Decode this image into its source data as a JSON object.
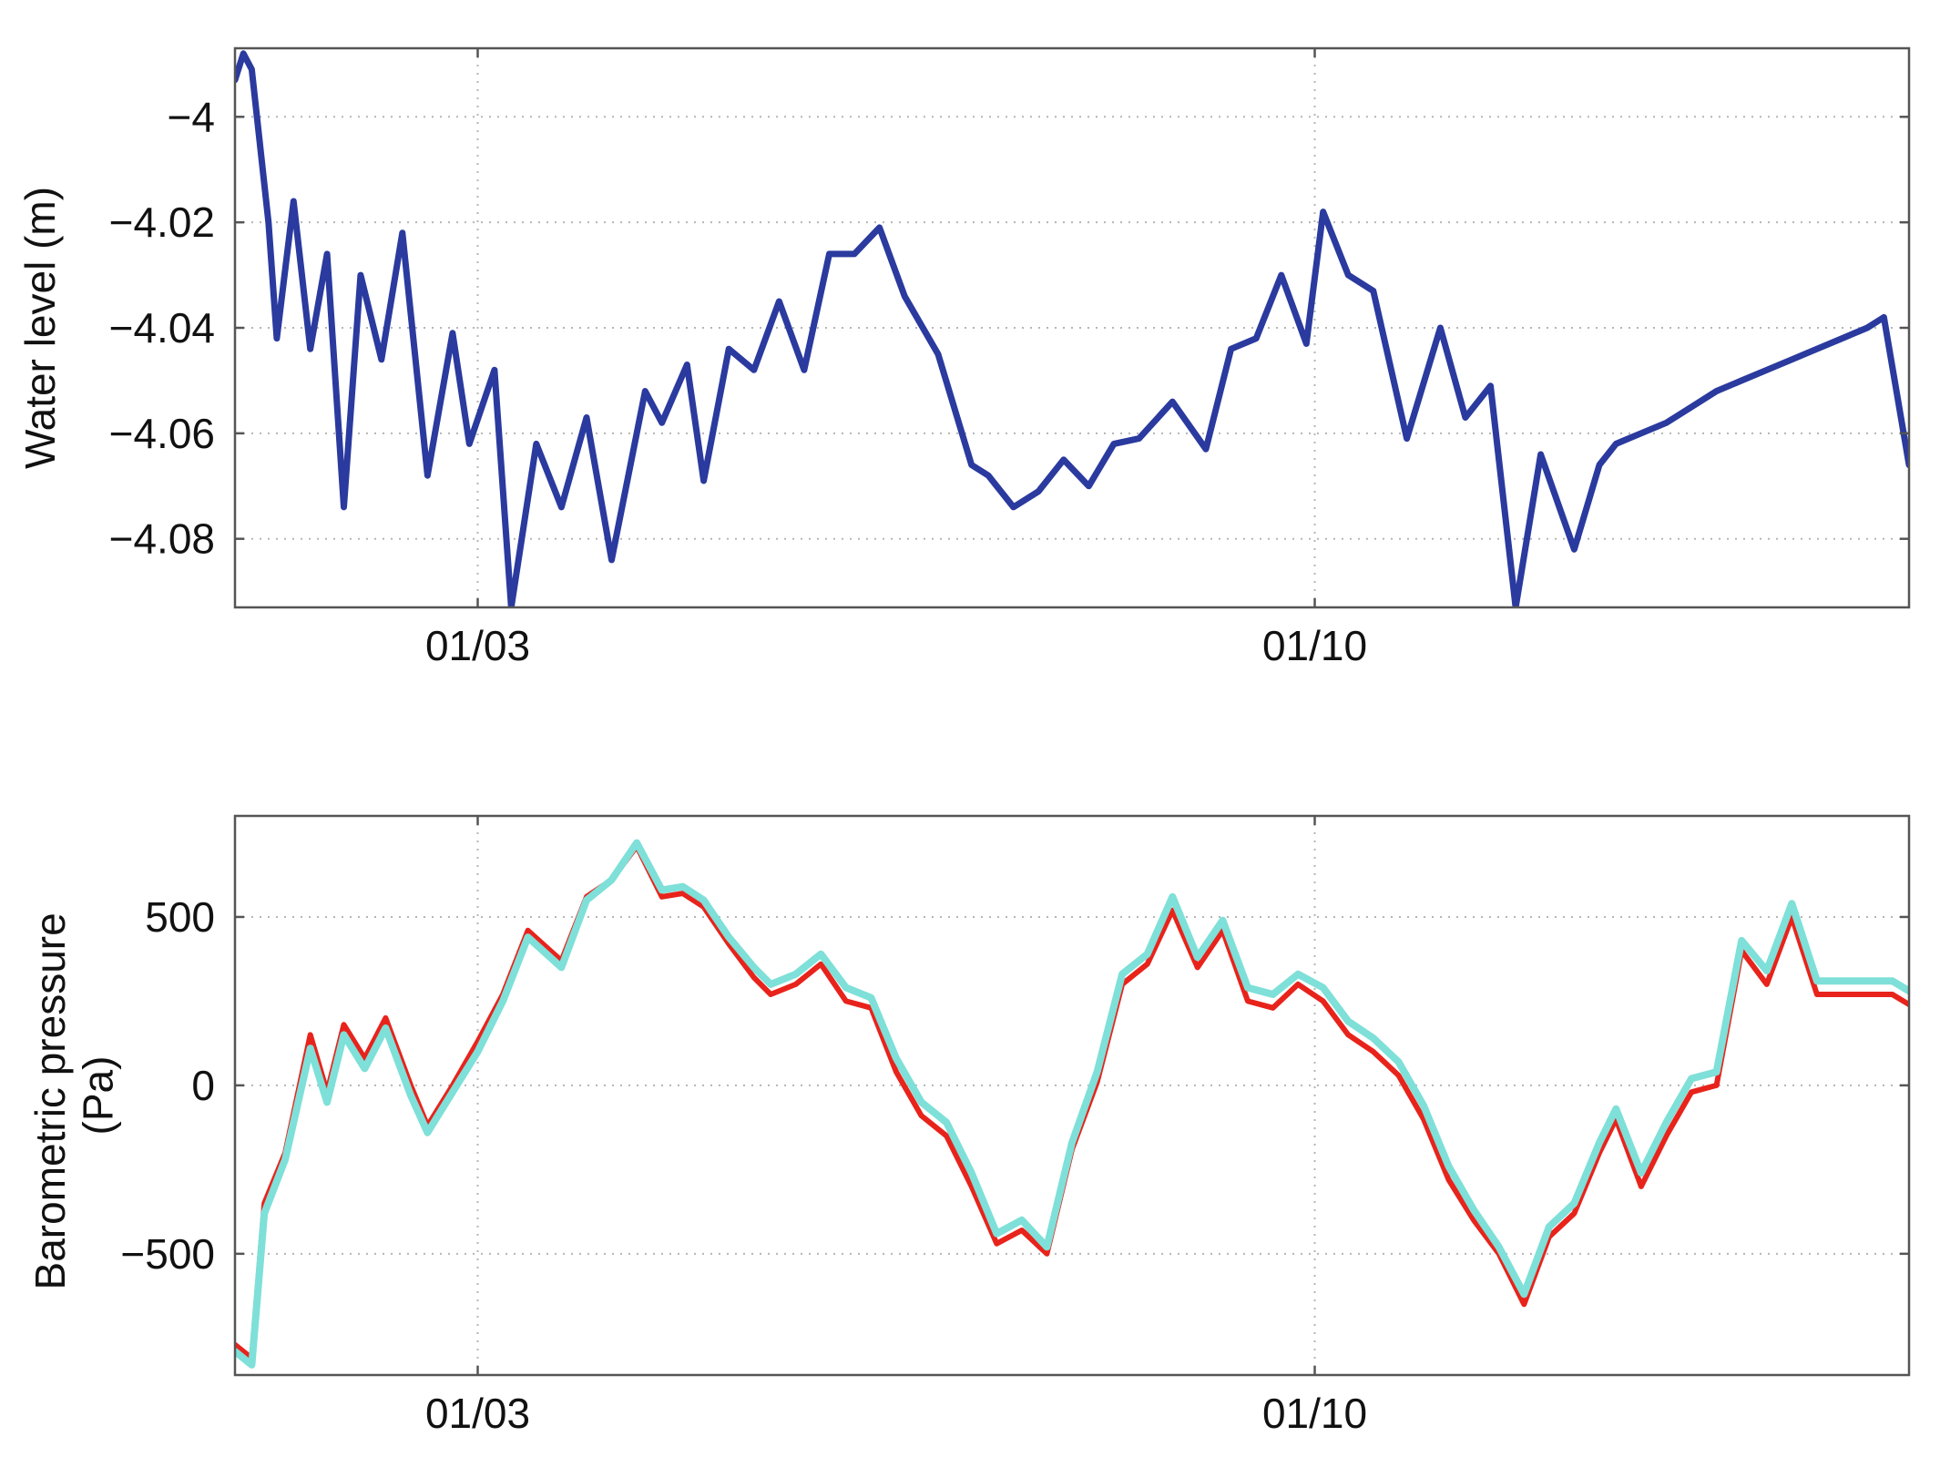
{
  "chart_data": [
    {
      "type": "line",
      "title": "",
      "xlabel": "",
      "ylabel": "Water level (m)",
      "ylim": [
        -4.093,
        -3.987
      ],
      "xlim": [
        0,
        20
      ],
      "x_ticks": [
        {
          "x": 2.9,
          "label": "01/03"
        },
        {
          "x": 12.9,
          "label": "01/10"
        }
      ],
      "y_ticks": [
        {
          "y": -4.0,
          "label": "−4"
        },
        {
          "y": -4.02,
          "label": "−4.02"
        },
        {
          "y": -4.04,
          "label": "−4.04"
        },
        {
          "y": -4.06,
          "label": "−4.06"
        },
        {
          "y": -4.08,
          "label": "−4.08"
        }
      ],
      "grid": true,
      "series": [
        {
          "color": "#2a3a9e",
          "x": [
            0,
            0.1,
            0.2,
            0.4,
            0.5,
            0.7,
            0.9,
            1.1,
            1.3,
            1.5,
            1.75,
            2.0,
            2.3,
            2.6,
            2.8,
            3.1,
            3.3,
            3.6,
            3.9,
            4.2,
            4.5,
            4.9,
            5.1,
            5.4,
            5.6,
            5.9,
            6.2,
            6.5,
            6.8,
            7.1,
            7.4,
            7.7,
            8.0,
            8.4,
            8.8,
            9.0,
            9.3,
            9.6,
            9.9,
            10.2,
            10.5,
            10.8,
            11.2,
            11.6,
            11.9,
            12.2,
            12.5,
            12.8,
            13.0,
            13.3,
            13.6,
            14.0,
            14.4,
            14.7,
            15.0,
            15.3,
            15.6,
            16.0,
            16.3,
            16.5,
            16.8,
            17.1,
            17.4,
            17.7,
            18.0,
            18.3,
            18.6,
            18.9,
            19.2,
            19.5,
            19.7,
            20.0
          ],
          "y": [
            -3.993,
            -3.988,
            -3.991,
            -4.02,
            -4.042,
            -4.016,
            -4.044,
            -4.026,
            -4.074,
            -4.03,
            -4.046,
            -4.022,
            -4.068,
            -4.041,
            -4.062,
            -4.048,
            -4.093,
            -4.062,
            -4.074,
            -4.057,
            -4.084,
            -4.052,
            -4.058,
            -4.047,
            -4.069,
            -4.044,
            -4.048,
            -4.035,
            -4.048,
            -4.026,
            -4.026,
            -4.021,
            -4.034,
            -4.045,
            -4.066,
            -4.068,
            -4.074,
            -4.071,
            -4.065,
            -4.07,
            -4.062,
            -4.061,
            -4.054,
            -4.063,
            -4.044,
            -4.042,
            -4.03,
            -4.043,
            -4.018,
            -4.03,
            -4.033,
            -4.061,
            -4.04,
            -4.057,
            -4.051,
            -4.093,
            -4.064,
            -4.082,
            -4.066,
            -4.062,
            -4.06,
            -4.058,
            -4.055,
            -4.052,
            -4.05,
            -4.048,
            -4.046,
            -4.044,
            -4.042,
            -4.04,
            -4.038,
            -4.066
          ]
        }
      ]
    },
    {
      "type": "line",
      "title": "",
      "xlabel": "",
      "ylabel": "Barometric pressure\n(Pa)",
      "ylabel_lines": [
        "Barometric pressure",
        "(Pa)"
      ],
      "ylim": [
        -860,
        800
      ],
      "xlim": [
        0,
        20
      ],
      "x_ticks": [
        {
          "x": 2.9,
          "label": "01/03"
        },
        {
          "x": 12.9,
          "label": "01/10"
        }
      ],
      "y_ticks": [
        {
          "y": 500,
          "label": "500"
        },
        {
          "y": 0,
          "label": "0"
        },
        {
          "y": -500,
          "label": "−500"
        }
      ],
      "grid": true,
      "series": [
        {
          "color": "#e8231b",
          "x": [
            0,
            0.2,
            0.35,
            0.6,
            0.9,
            1.1,
            1.3,
            1.55,
            1.8,
            2.1,
            2.3,
            2.6,
            2.9,
            3.2,
            3.5,
            3.9,
            4.2,
            4.5,
            4.8,
            5.1,
            5.35,
            5.6,
            5.9,
            6.2,
            6.4,
            6.7,
            7.0,
            7.3,
            7.6,
            7.9,
            8.2,
            8.5,
            8.8,
            9.1,
            9.4,
            9.7,
            10.0,
            10.3,
            10.6,
            10.9,
            11.2,
            11.5,
            11.8,
            12.1,
            12.4,
            12.7,
            13.0,
            13.3,
            13.6,
            13.9,
            14.2,
            14.5,
            14.8,
            15.1,
            15.4,
            15.7,
            16.0,
            16.3,
            16.5,
            16.8,
            17.1,
            17.4,
            17.7,
            18.0,
            18.3,
            18.6,
            18.9,
            19.2,
            19.5,
            19.7,
            19.8,
            20.0
          ],
          "y": [
            -770,
            -810,
            -350,
            -200,
            150,
            -20,
            180,
            80,
            200,
            0,
            -120,
            0,
            130,
            270,
            460,
            370,
            560,
            610,
            710,
            560,
            570,
            530,
            420,
            320,
            270,
            300,
            360,
            250,
            230,
            40,
            -90,
            -150,
            -300,
            -470,
            -430,
            -500,
            -190,
            10,
            300,
            360,
            520,
            350,
            460,
            250,
            230,
            300,
            250,
            150,
            100,
            30,
            -100,
            -280,
            -400,
            -500,
            -650,
            -450,
            -380,
            -200,
            -100,
            -300,
            -150,
            -20,
            0,
            400,
            300,
            500,
            270,
            270,
            270,
            270,
            270,
            240
          ]
        },
        {
          "color": "#7ee0d8",
          "x": [
            0,
            0.2,
            0.35,
            0.6,
            0.9,
            1.1,
            1.3,
            1.55,
            1.8,
            2.1,
            2.3,
            2.6,
            2.9,
            3.2,
            3.5,
            3.9,
            4.2,
            4.5,
            4.8,
            5.1,
            5.35,
            5.6,
            5.9,
            6.2,
            6.4,
            6.7,
            7.0,
            7.3,
            7.6,
            7.9,
            8.2,
            8.5,
            8.8,
            9.1,
            9.4,
            9.7,
            10.0,
            10.3,
            10.6,
            10.9,
            11.2,
            11.5,
            11.8,
            12.1,
            12.4,
            12.7,
            13.0,
            13.3,
            13.6,
            13.9,
            14.2,
            14.5,
            14.8,
            15.1,
            15.4,
            15.7,
            16.0,
            16.3,
            16.5,
            16.8,
            17.1,
            17.4,
            17.7,
            18.0,
            18.3,
            18.6,
            18.9,
            19.2,
            19.5,
            19.7,
            19.8,
            20.0
          ],
          "y": [
            -790,
            -830,
            -380,
            -220,
            110,
            -50,
            150,
            50,
            170,
            -30,
            -140,
            -20,
            100,
            250,
            440,
            350,
            550,
            610,
            720,
            580,
            590,
            550,
            440,
            350,
            300,
            330,
            390,
            290,
            260,
            80,
            -50,
            -110,
            -260,
            -440,
            -400,
            -480,
            -170,
            40,
            330,
            390,
            560,
            380,
            490,
            290,
            270,
            330,
            290,
            190,
            140,
            70,
            -60,
            -240,
            -370,
            -480,
            -620,
            -420,
            -350,
            -170,
            -70,
            -260,
            -110,
            20,
            40,
            430,
            340,
            540,
            310,
            310,
            310,
            310,
            310,
            280
          ]
        }
      ]
    }
  ]
}
